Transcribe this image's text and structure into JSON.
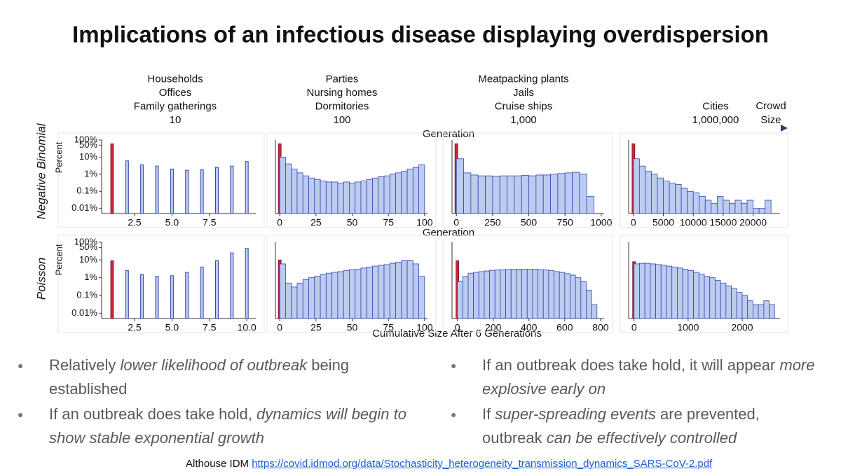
{
  "header": {
    "title": "Implications of an infectious disease displaying overdispersion"
  },
  "scale": {
    "groups": [
      {
        "lines": [
          "Households",
          "Offices",
          "Family gatherings",
          "10"
        ]
      },
      {
        "lines": [
          "Parties",
          "Nursing homes",
          "Dormitories",
          "100"
        ]
      },
      {
        "lines": [
          "Meatpacking plants",
          "Jails",
          "Cruise ships",
          "1,000"
        ]
      },
      {
        "lines": [
          "Cities",
          "1,000,000"
        ]
      }
    ],
    "axis_label": [
      "Crowd",
      "Size"
    ]
  },
  "rows": [
    "Negative Binomial",
    "Poisson"
  ],
  "fragments": [
    "Generation",
    "Generation"
  ],
  "shared_xlabel": "Cumulative Size After 6 Generations",
  "chart_data": [
    {
      "type": "bar",
      "log_y": true,
      "ylabel": "Percent",
      "ylim": [
        0.005,
        100
      ],
      "yticks": [
        {
          "value": 100,
          "label": "100%"
        },
        {
          "value": 50,
          "label": "50%"
        },
        {
          "value": 10,
          "label": "10%"
        },
        {
          "value": 1,
          "label": "1%"
        },
        {
          "value": 0.1,
          "label": "0.1%"
        },
        {
          "value": 0.01,
          "label": "0.01%"
        }
      ],
      "xlim": [
        0.3,
        10.6
      ],
      "xticks": [
        2.5,
        {
          "value": 5,
          "label": "5.0"
        },
        7.5
      ],
      "highlight": {
        "x": 1,
        "value": 60,
        "color": "#c42c3c"
      },
      "x": [
        2,
        3,
        4,
        5,
        6,
        7,
        8,
        9,
        10
      ],
      "values": [
        6,
        3.5,
        3,
        2,
        1.7,
        1.8,
        2.5,
        3,
        5.5
      ],
      "color": "#bccbf0"
    },
    {
      "type": "histogram",
      "log_y": true,
      "ylim": [
        0.005,
        100
      ],
      "xlim": [
        -3,
        102
      ],
      "xticks": [
        0,
        25,
        50,
        75,
        100
      ],
      "highlight": {
        "x": 0,
        "value": 60,
        "color": "#c42c3c"
      },
      "bins": [
        0,
        4,
        8,
        12,
        16,
        20,
        24,
        28,
        32,
        36,
        40,
        44,
        48,
        52,
        56,
        60,
        64,
        68,
        72,
        76,
        80,
        84,
        88,
        92,
        96,
        100
      ],
      "values": [
        10,
        4,
        2,
        1.2,
        0.8,
        0.6,
        0.5,
        0.4,
        0.35,
        0.35,
        0.3,
        0.35,
        0.3,
        0.35,
        0.4,
        0.5,
        0.6,
        0.7,
        0.8,
        1,
        1.2,
        1.5,
        2,
        2.5,
        3.5
      ],
      "color": "#bccbf0"
    },
    {
      "type": "histogram",
      "log_y": true,
      "ylim": [
        0.005,
        100
      ],
      "xlim": [
        -30,
        1020
      ],
      "xticks": [
        0,
        250,
        500,
        750,
        1000
      ],
      "highlight": {
        "x": 0,
        "value": 60,
        "color": "#c42c3c"
      },
      "bins": [
        0,
        50,
        100,
        150,
        200,
        250,
        300,
        350,
        400,
        450,
        500,
        550,
        600,
        650,
        700,
        750,
        800,
        850,
        900,
        950
      ],
      "values": [
        8,
        1.2,
        0.9,
        0.8,
        0.8,
        0.75,
        0.8,
        0.8,
        0.8,
        0.85,
        0.8,
        0.9,
        0.9,
        1,
        1.1,
        1.2,
        1.3,
        1,
        0.05
      ],
      "color": "#bccbf0"
    },
    {
      "type": "histogram",
      "log_y": true,
      "ylim": [
        0.005,
        100
      ],
      "xlim": [
        -800,
        24500
      ],
      "xticks": [
        0,
        5000,
        10000,
        15000,
        20000
      ],
      "highlight": {
        "x": 0,
        "value": 60,
        "color": "#c42c3c"
      },
      "bins": [
        0,
        1000,
        2000,
        3000,
        4000,
        5000,
        6000,
        7000,
        8000,
        9000,
        10000,
        11000,
        12000,
        13000,
        14000,
        15000,
        16000,
        17000,
        18000,
        19000,
        20000,
        21000,
        22000,
        23000
      ],
      "values": [
        8,
        3,
        1.5,
        1,
        0.6,
        0.4,
        0.3,
        0.25,
        0.15,
        0.1,
        0.08,
        0.05,
        0.03,
        0.02,
        0.05,
        0.03,
        0.02,
        0.03,
        0.02,
        0.03,
        0.01,
        0.01,
        0.03
      ],
      "color": "#bccbf0"
    },
    {
      "type": "bar",
      "log_y": true,
      "ylabel": "Percent",
      "ylim": [
        0.005,
        100
      ],
      "yticks": [
        {
          "value": 100,
          "label": "100%"
        },
        {
          "value": 50,
          "label": "50%"
        },
        {
          "value": 10,
          "label": "10%"
        },
        {
          "value": 1,
          "label": "1%"
        },
        {
          "value": 0.1,
          "label": "0.1%"
        },
        {
          "value": 0.01,
          "label": "0.01%"
        }
      ],
      "xlim": [
        0.3,
        10.6
      ],
      "xticks": [
        2.5,
        {
          "value": 5,
          "label": "5.0"
        },
        7.5,
        {
          "value": 10,
          "label": "10.0"
        }
      ],
      "highlight": {
        "x": 1,
        "value": 9,
        "color": "#c42c3c"
      },
      "x": [
        2,
        3,
        4,
        5,
        6,
        7,
        8,
        9,
        10
      ],
      "values": [
        2.5,
        1.5,
        1.2,
        1.3,
        2,
        4,
        9,
        25,
        45
      ],
      "color": "#bccbf0"
    },
    {
      "type": "histogram",
      "log_y": true,
      "ylim": [
        0.005,
        100
      ],
      "xlim": [
        -3,
        102
      ],
      "xticks": [
        0,
        25,
        50,
        75,
        100
      ],
      "highlight": {
        "x": 0,
        "value": 10,
        "color": "#c42c3c"
      },
      "bins": [
        0,
        4,
        8,
        12,
        16,
        20,
        24,
        28,
        32,
        36,
        40,
        44,
        48,
        52,
        56,
        60,
        64,
        68,
        72,
        76,
        80,
        84,
        88,
        92,
        96,
        100
      ],
      "values": [
        6,
        0.5,
        0.3,
        0.5,
        0.8,
        1,
        1.2,
        1.5,
        1.8,
        2,
        2.2,
        2.5,
        2.8,
        3,
        3.5,
        4,
        4.5,
        5,
        5.5,
        6.5,
        7.5,
        9,
        9,
        6,
        1.2
      ],
      "color": "#bccbf0"
    },
    {
      "type": "histogram",
      "log_y": true,
      "ylim": [
        0.005,
        100
      ],
      "xlim": [
        -30,
        820
      ],
      "xticks": [
        0,
        200,
        400,
        600,
        800
      ],
      "highlight": {
        "x": 0,
        "value": 9,
        "color": "#c42c3c"
      },
      "bins": [
        0,
        30,
        60,
        90,
        120,
        150,
        180,
        210,
        240,
        270,
        300,
        330,
        360,
        390,
        420,
        450,
        480,
        510,
        540,
        570,
        600,
        630,
        660,
        690,
        720,
        750,
        780
      ],
      "values": [
        0.6,
        1.2,
        1.8,
        2,
        2.2,
        2.4,
        2.6,
        2.7,
        2.8,
        2.9,
        3,
        3,
        3,
        3,
        3,
        2.8,
        2.7,
        2.5,
        2.2,
        2,
        1.7,
        1.4,
        1,
        0.6,
        0.2,
        0.03
      ],
      "color": "#bccbf0"
    },
    {
      "type": "histogram",
      "log_y": true,
      "ylim": [
        0.005,
        100
      ],
      "xlim": [
        -100,
        2700
      ],
      "xticks": [
        0,
        1000,
        2000
      ],
      "highlight": {
        "x": 0,
        "value": 8,
        "color": "#c42c3c"
      },
      "bins": [
        0,
        100,
        200,
        300,
        400,
        500,
        600,
        700,
        800,
        900,
        1000,
        1100,
        1200,
        1300,
        1400,
        1500,
        1600,
        1700,
        1800,
        1900,
        2000,
        2100,
        2200,
        2300,
        2400,
        2500,
        2600
      ],
      "values": [
        6,
        6.5,
        6.5,
        6,
        5.5,
        5,
        4.5,
        4,
        3.5,
        3,
        2.5,
        2,
        1.6,
        1.2,
        1,
        0.7,
        0.5,
        0.35,
        0.25,
        0.15,
        0.1,
        0.05,
        0.03,
        0.03,
        0.05,
        0.03
      ],
      "color": "#bccbf0"
    }
  ],
  "bullets": {
    "left": [
      [
        {
          "text": "Relatively ",
          "italic": false
        },
        {
          "text": "lower likelihood of outbreak",
          "italic": true
        },
        {
          "text": " being established",
          "italic": false
        }
      ],
      [
        {
          "text": "If an outbreak does take hold, ",
          "italic": false
        },
        {
          "text": "dynamics will begin to show stable exponential growth",
          "italic": true
        }
      ]
    ],
    "right": [
      [
        {
          "text": "If an outbreak does take hold, it will appear ",
          "italic": false
        },
        {
          "text": "more explosive early on",
          "italic": true
        }
      ],
      [
        {
          "text": "If ",
          "italic": false
        },
        {
          "text": "super-spreading events",
          "italic": true
        },
        {
          "text": " are prevented, outbreak ",
          "italic": false
        },
        {
          "text": "can be effectively controlled",
          "italic": true
        }
      ]
    ]
  },
  "footer": {
    "source": "Althouse IDM",
    "link": "https://covid.idmod.org/data/Stochasticity_heterogeneity_transmission_dynamics_SARS-CoV-2.pdf"
  }
}
